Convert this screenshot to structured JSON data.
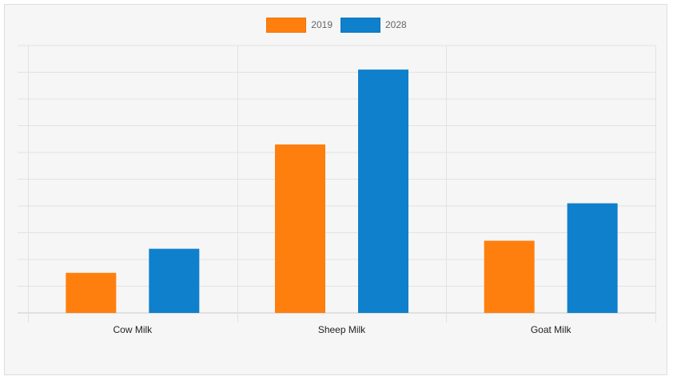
{
  "chart_data": {
    "type": "bar",
    "categories": [
      "Cow Milk",
      "Sheep Milk",
      "Goat Milk"
    ],
    "series": [
      {
        "name": "2019",
        "values": [
          1.5,
          6.3,
          2.7
        ],
        "color": "#ff7f0e"
      },
      {
        "name": "2028",
        "values": [
          2.4,
          9.1,
          4.1
        ],
        "color": "#0f80cc"
      }
    ],
    "ylim": [
      0,
      10
    ],
    "grid": true,
    "legend_position": "top-center",
    "title": "",
    "xlabel": "",
    "ylabel": ""
  }
}
